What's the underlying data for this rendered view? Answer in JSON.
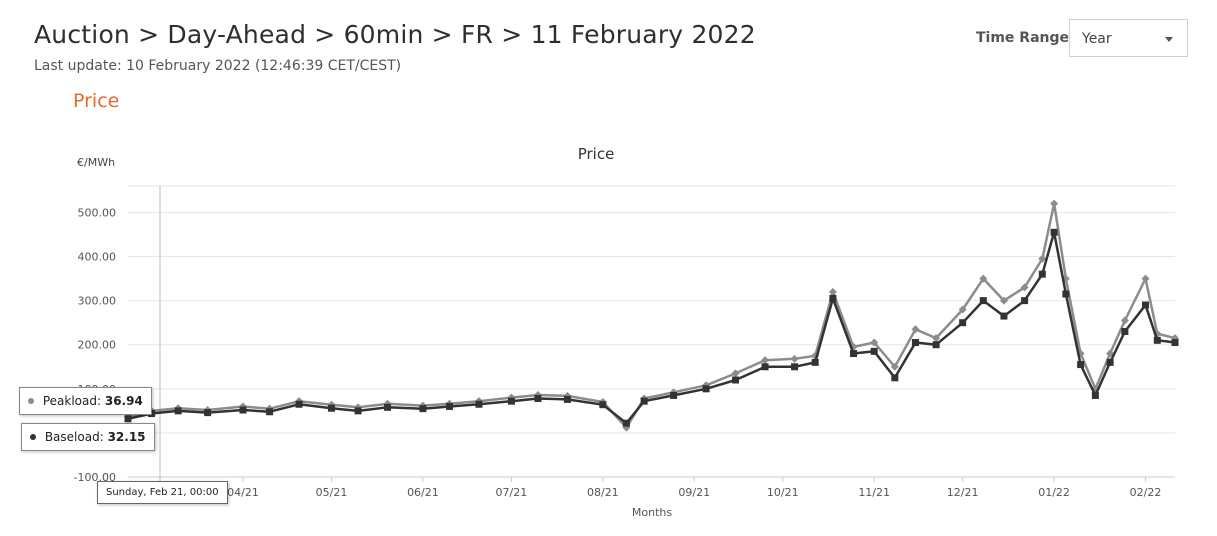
{
  "header": {
    "breadcrumb": "Auction > Day-Ahead > 60min > FR > 11 February 2022",
    "last_update": "Last update: 10 February 2022 (12:46:39 CET/CEST)",
    "section_title": "Price",
    "accent_color": "#e36b2c"
  },
  "time_range": {
    "label": "Time Range",
    "selected": "Year",
    "caret_icon": "chevron-down-icon"
  },
  "tooltip": {
    "peak_label": "Peakload:",
    "peak_value": "36.94",
    "base_label": "Baseload:",
    "base_value": "32.15",
    "date_label": "Sunday, Feb 21, 00:00"
  },
  "chart_data": {
    "type": "line",
    "title": "Price",
    "ylabel": "€/MWh",
    "xlabel": "Months",
    "ylim": [
      -100,
      560
    ],
    "yticks": [
      "-100.00",
      "0.00",
      "100.00",
      "200.00",
      "300.00",
      "400.00",
      "500.00"
    ],
    "x_range": [
      "2021-02-21",
      "2022-02-11"
    ],
    "x_ticks": [
      {
        "date": "2021-04-01",
        "label": "04/21"
      },
      {
        "date": "2021-05-01",
        "label": "05/21"
      },
      {
        "date": "2021-06-01",
        "label": "06/21"
      },
      {
        "date": "2021-07-01",
        "label": "07/21"
      },
      {
        "date": "2021-08-01",
        "label": "08/21"
      },
      {
        "date": "2021-09-01",
        "label": "09/21"
      },
      {
        "date": "2021-10-01",
        "label": "10/21"
      },
      {
        "date": "2021-11-01",
        "label": "11/21"
      },
      {
        "date": "2021-12-01",
        "label": "12/21"
      },
      {
        "date": "2022-01-01",
        "label": "01/22"
      },
      {
        "date": "2022-02-01",
        "label": "02/22"
      }
    ],
    "grid": true,
    "series": [
      {
        "name": "Peakload",
        "color": "#8c8c8c",
        "marker": "diamond",
        "points": [
          [
            "2021-02-21",
            37
          ],
          [
            "2021-03-01",
            50
          ],
          [
            "2021-03-10",
            56
          ],
          [
            "2021-03-20",
            52
          ],
          [
            "2021-04-01",
            60
          ],
          [
            "2021-04-10",
            55
          ],
          [
            "2021-04-20",
            72
          ],
          [
            "2021-05-01",
            64
          ],
          [
            "2021-05-10",
            58
          ],
          [
            "2021-05-20",
            66
          ],
          [
            "2021-06-01",
            62
          ],
          [
            "2021-06-10",
            66
          ],
          [
            "2021-06-20",
            72
          ],
          [
            "2021-07-01",
            80
          ],
          [
            "2021-07-10",
            86
          ],
          [
            "2021-07-20",
            84
          ],
          [
            "2021-08-01",
            70
          ],
          [
            "2021-08-09",
            12
          ],
          [
            "2021-08-15",
            78
          ],
          [
            "2021-08-25",
            92
          ],
          [
            "2021-09-05",
            108
          ],
          [
            "2021-09-15",
            135
          ],
          [
            "2021-09-25",
            165
          ],
          [
            "2021-10-05",
            168
          ],
          [
            "2021-10-12",
            175
          ],
          [
            "2021-10-18",
            320
          ],
          [
            "2021-10-25",
            195
          ],
          [
            "2021-11-01",
            205
          ],
          [
            "2021-11-08",
            150
          ],
          [
            "2021-11-15",
            235
          ],
          [
            "2021-11-22",
            215
          ],
          [
            "2021-12-01",
            280
          ],
          [
            "2021-12-08",
            350
          ],
          [
            "2021-12-15",
            300
          ],
          [
            "2021-12-22",
            330
          ],
          [
            "2021-12-28",
            395
          ],
          [
            "2022-01-01",
            520
          ],
          [
            "2022-01-05",
            350
          ],
          [
            "2022-01-10",
            180
          ],
          [
            "2022-01-15",
            100
          ],
          [
            "2022-01-20",
            180
          ],
          [
            "2022-01-25",
            255
          ],
          [
            "2022-02-01",
            350
          ],
          [
            "2022-02-05",
            225
          ],
          [
            "2022-02-11",
            215
          ]
        ]
      },
      {
        "name": "Baseload",
        "color": "#333333",
        "marker": "square",
        "points": [
          [
            "2021-02-21",
            32
          ],
          [
            "2021-03-01",
            44
          ],
          [
            "2021-03-10",
            50
          ],
          [
            "2021-03-20",
            46
          ],
          [
            "2021-04-01",
            52
          ],
          [
            "2021-04-10",
            48
          ],
          [
            "2021-04-20",
            65
          ],
          [
            "2021-05-01",
            56
          ],
          [
            "2021-05-10",
            50
          ],
          [
            "2021-05-20",
            58
          ],
          [
            "2021-06-01",
            55
          ],
          [
            "2021-06-10",
            60
          ],
          [
            "2021-06-20",
            65
          ],
          [
            "2021-07-01",
            72
          ],
          [
            "2021-07-10",
            78
          ],
          [
            "2021-07-20",
            76
          ],
          [
            "2021-08-01",
            64
          ],
          [
            "2021-08-09",
            22
          ],
          [
            "2021-08-15",
            72
          ],
          [
            "2021-08-25",
            85
          ],
          [
            "2021-09-05",
            100
          ],
          [
            "2021-09-15",
            120
          ],
          [
            "2021-09-25",
            150
          ],
          [
            "2021-10-05",
            150
          ],
          [
            "2021-10-12",
            160
          ],
          [
            "2021-10-18",
            305
          ],
          [
            "2021-10-25",
            180
          ],
          [
            "2021-11-01",
            185
          ],
          [
            "2021-11-08",
            125
          ],
          [
            "2021-11-15",
            205
          ],
          [
            "2021-11-22",
            200
          ],
          [
            "2021-12-01",
            250
          ],
          [
            "2021-12-08",
            300
          ],
          [
            "2021-12-15",
            265
          ],
          [
            "2021-12-22",
            300
          ],
          [
            "2021-12-28",
            360
          ],
          [
            "2022-01-01",
            455
          ],
          [
            "2022-01-05",
            315
          ],
          [
            "2022-01-10",
            155
          ],
          [
            "2022-01-15",
            85
          ],
          [
            "2022-01-20",
            160
          ],
          [
            "2022-01-25",
            230
          ],
          [
            "2022-02-01",
            290
          ],
          [
            "2022-02-05",
            210
          ],
          [
            "2022-02-11",
            205
          ]
        ]
      }
    ]
  }
}
